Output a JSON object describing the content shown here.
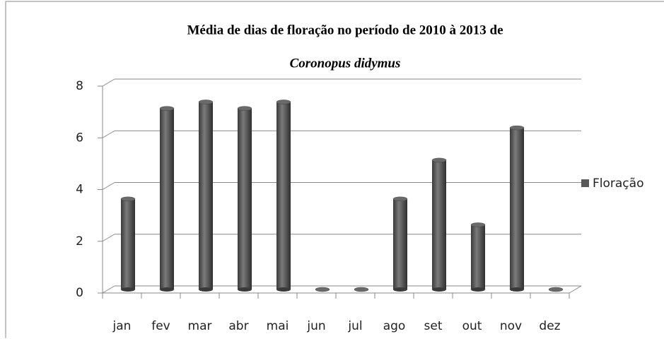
{
  "chart_data": {
    "type": "bar",
    "title": "Média de dias de floração no período de 2010 à 2013 de",
    "subtitle": "Coronopus didymus",
    "categories": [
      "jan",
      "fev",
      "mar",
      "abr",
      "mai",
      "jun",
      "jul",
      "ago",
      "set",
      "out",
      "nov",
      "dez"
    ],
    "series": [
      {
        "name": "Floração",
        "color": "#595959",
        "values": [
          3.5,
          7,
          7.25,
          7,
          7.25,
          0,
          0,
          3.5,
          5,
          2.5,
          6.25,
          0
        ]
      }
    ],
    "ylim": [
      0,
      8
    ],
    "yticks": [
      0,
      2,
      4,
      6,
      8
    ],
    "grid": true,
    "legend": "right"
  }
}
